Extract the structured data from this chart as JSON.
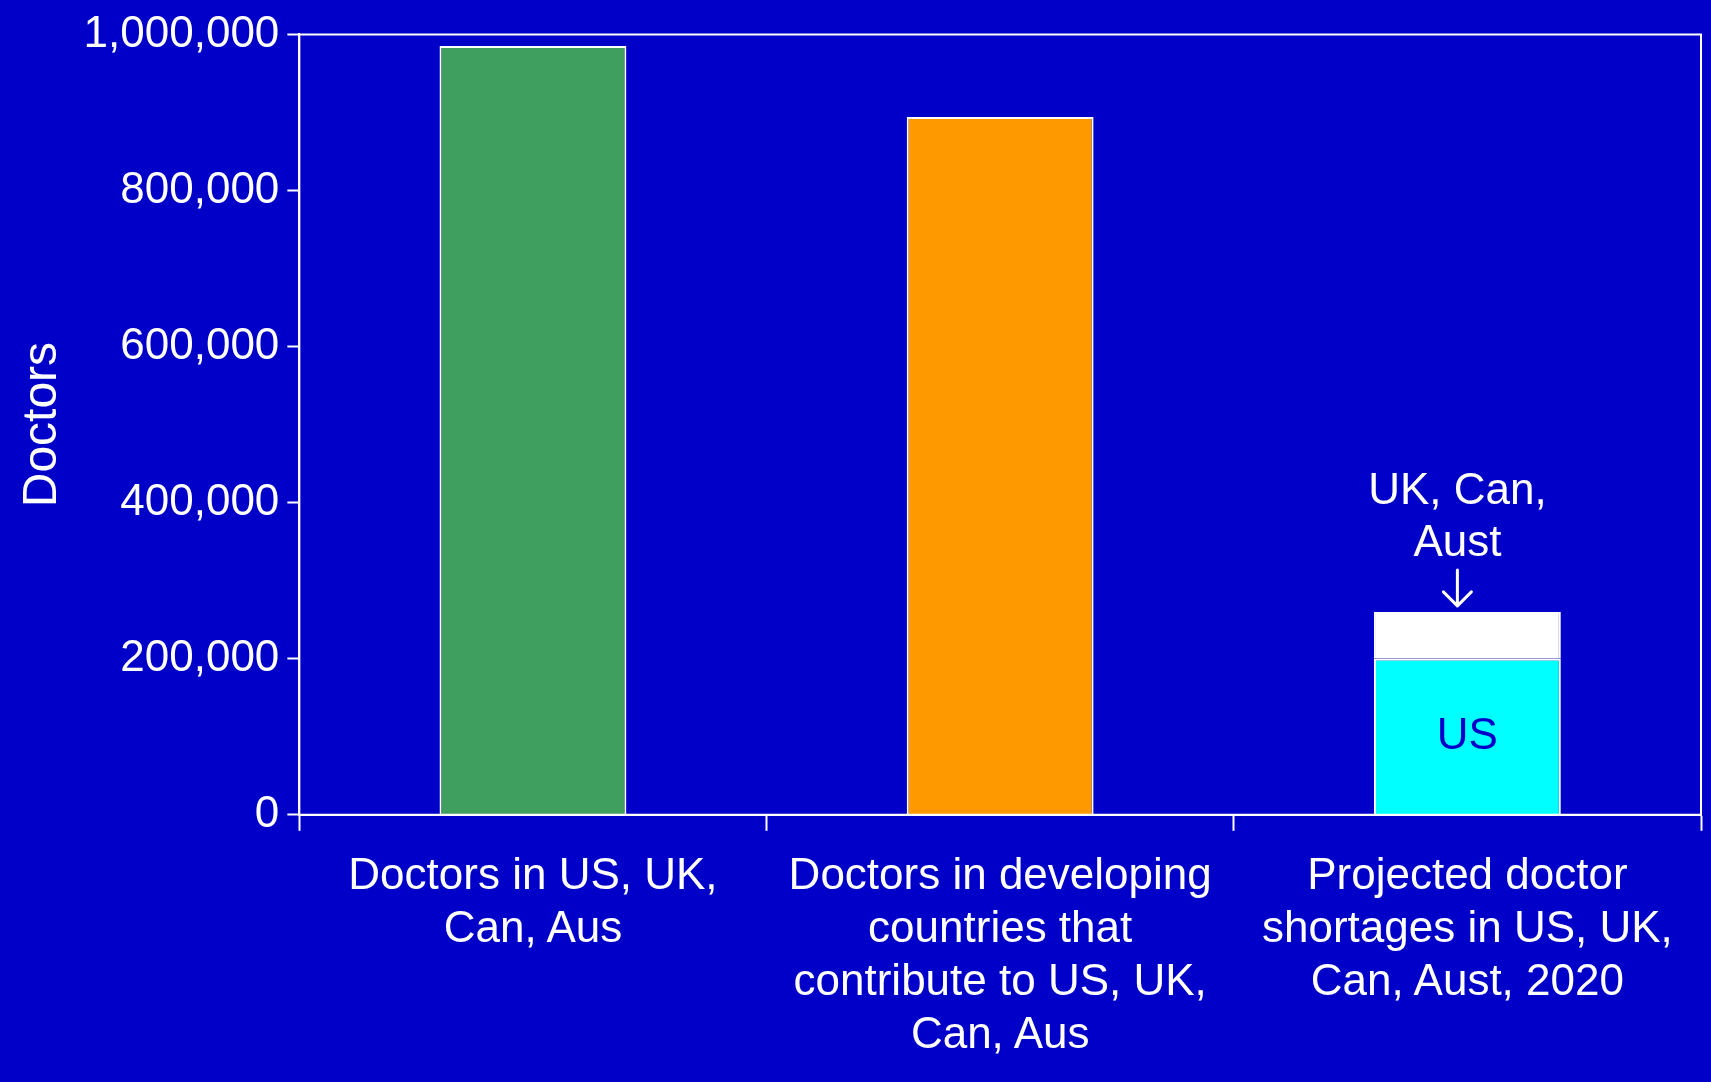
{
  "chart_data": {
    "type": "bar",
    "stacked": true,
    "ylabel": "Doctors",
    "categories": [
      "Doctors in US, UK, Can, Aus",
      "Doctors in developing countries that contribute to US, UK, Can, Aus",
      "Projected doctor shortages in US, UK, Can, Aust, 2020"
    ],
    "series": [
      {
        "colors": [
          "#3f9f5f",
          "#ff9900",
          null
        ],
        "values": [
          985000,
          894000,
          null
        ]
      },
      {
        "color": "#00ffff",
        "values": [
          null,
          null,
          200000
        ]
      },
      {
        "color": "#ffffff",
        "values": [
          null,
          null,
          60000
        ]
      }
    ],
    "annotations": [
      "US",
      {
        "text": "UK, Can, Aust",
        "x": "Projected doctor shortages in US, UK, Can, Aust, 2020",
        "y": 260000
      }
    ],
    "ylim": [
      0,
      1000000
    ],
    "yticks": [
      0,
      {
        "value": 200000,
        "label": "200,000"
      },
      {
        "value": 400000,
        "label": "400,000"
      },
      {
        "value": 600000,
        "label": "600,000"
      },
      {
        "value": 800000,
        "label": "800,000"
      },
      {
        "value": 1000000,
        "label": "1,000,000"
      }
    ],
    "grid": false,
    "legend": false
  }
}
